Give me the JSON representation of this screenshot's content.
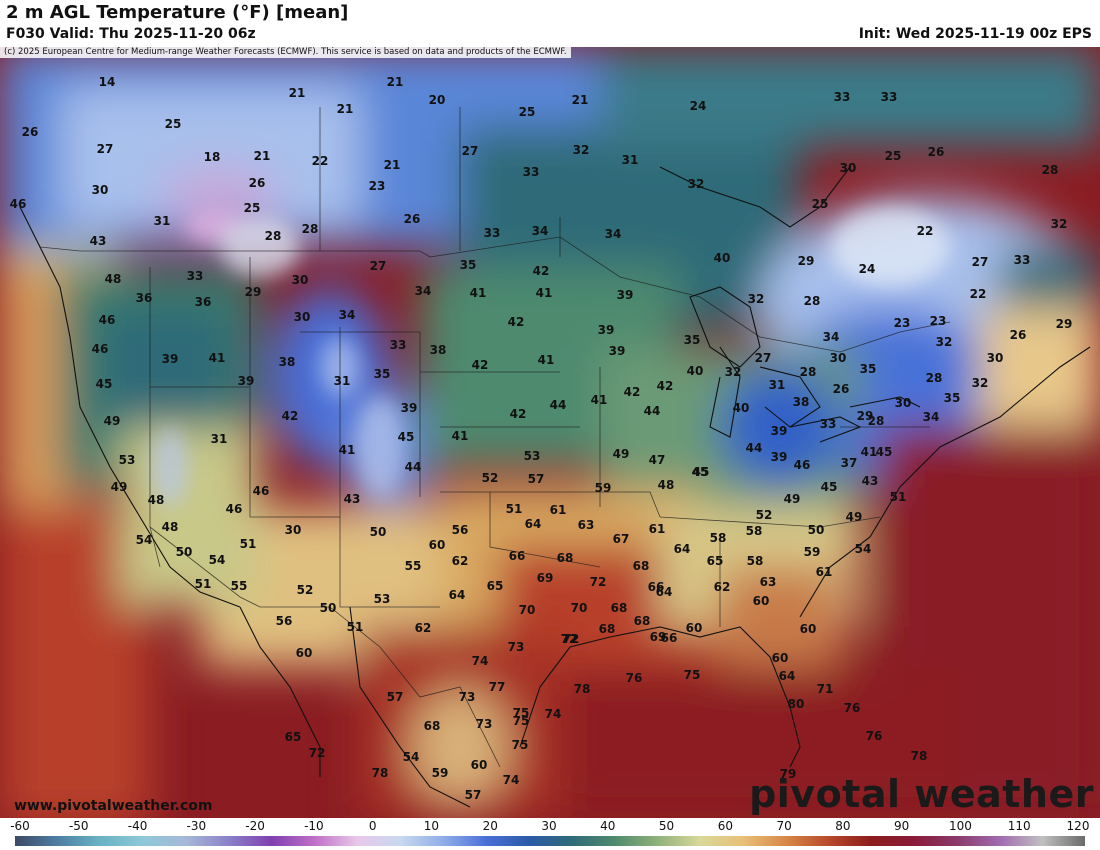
{
  "header": {
    "title": "2 m AGL Temperature (°F) [mean]",
    "valid": "F030 Valid: Thu 2025-11-20 06z",
    "init": "Init: Wed 2025-11-19 00z EPS",
    "copyright": "(c) 2025 European Centre for Medium-range Weather Forecasts (ECMWF). This service is based on data and products of the ECMWF."
  },
  "footer": {
    "website": "www.pivotalweather.com",
    "brand": "pivotal weather"
  },
  "colorbar": {
    "ticks": [
      "-60",
      "-50",
      "-40",
      "-30",
      "-20",
      "-10",
      "0",
      "10",
      "20",
      "30",
      "40",
      "50",
      "60",
      "70",
      "80",
      "90",
      "100",
      "110",
      "120"
    ],
    "colors": [
      "#3d4a66",
      "#4f7ea5",
      "#69b3c4",
      "#8ec8d8",
      "#a6b8d8",
      "#8a80c8",
      "#8040b0",
      "#c070c8",
      "#e8c8e8",
      "#c8d8f0",
      "#90aee8",
      "#4a70d8",
      "#2c5aa8",
      "#2f6b78",
      "#4e8a6e",
      "#8fb07a",
      "#d8d89a",
      "#e8c07a",
      "#d88848",
      "#b84a2c",
      "#8c1c1c",
      "#8a1a3a",
      "#8a3a6a",
      "#a06ab0",
      "#c0c0c0",
      "#6a6a6a"
    ]
  },
  "temperatures": [
    {
      "v": "14"
    },
    {
      "v": "21"
    },
    {
      "v": "20"
    },
    {
      "v": "21"
    },
    {
      "v": "21"
    },
    {
      "v": "25"
    },
    {
      "v": "21"
    },
    {
      "v": "24"
    },
    {
      "v": "33"
    },
    {
      "v": "33"
    },
    {
      "v": "26"
    },
    {
      "v": "25"
    },
    {
      "v": "27"
    },
    {
      "v": "18"
    },
    {
      "v": "21"
    },
    {
      "v": "22"
    },
    {
      "v": "21"
    },
    {
      "v": "27"
    },
    {
      "v": "32"
    },
    {
      "v": "31"
    },
    {
      "v": "30"
    },
    {
      "v": "25"
    },
    {
      "v": "26"
    },
    {
      "v": "30"
    },
    {
      "v": "26"
    },
    {
      "v": "23"
    },
    {
      "v": "33"
    },
    {
      "v": "32"
    },
    {
      "v": "28"
    },
    {
      "v": "46"
    },
    {
      "v": "31"
    },
    {
      "v": "25"
    },
    {
      "v": "28"
    },
    {
      "v": "28"
    },
    {
      "v": "26"
    },
    {
      "v": "33"
    },
    {
      "v": "34"
    },
    {
      "v": "34"
    },
    {
      "v": "25"
    },
    {
      "v": "22"
    },
    {
      "v": "32"
    },
    {
      "v": "43"
    },
    {
      "v": "27"
    },
    {
      "v": "35"
    },
    {
      "v": "42"
    },
    {
      "v": "40"
    },
    {
      "v": "29"
    },
    {
      "v": "24"
    },
    {
      "v": "27"
    },
    {
      "v": "33"
    },
    {
      "v": "48"
    },
    {
      "v": "33"
    },
    {
      "v": "30"
    },
    {
      "v": "29"
    },
    {
      "v": "34"
    },
    {
      "v": "41"
    },
    {
      "v": "41"
    },
    {
      "v": "39"
    },
    {
      "v": "32"
    },
    {
      "v": "28"
    },
    {
      "v": "22"
    },
    {
      "v": "36"
    },
    {
      "v": "36"
    },
    {
      "v": "30"
    },
    {
      "v": "34"
    },
    {
      "v": "42"
    },
    {
      "v": "23"
    },
    {
      "v": "23"
    },
    {
      "v": "26"
    },
    {
      "v": "29"
    },
    {
      "v": "46"
    },
    {
      "v": "39"
    },
    {
      "v": "33"
    },
    {
      "v": "38"
    },
    {
      "v": "39"
    },
    {
      "v": "35"
    },
    {
      "v": "34"
    },
    {
      "v": "32"
    },
    {
      "v": "30"
    },
    {
      "v": "46"
    },
    {
      "v": "39"
    },
    {
      "v": "41"
    },
    {
      "v": "38"
    },
    {
      "v": "42"
    },
    {
      "v": "41"
    },
    {
      "v": "39"
    },
    {
      "v": "30"
    },
    {
      "v": "35"
    },
    {
      "v": "45"
    },
    {
      "v": "39"
    },
    {
      "v": "31"
    },
    {
      "v": "35"
    },
    {
      "v": "42"
    },
    {
      "v": "40"
    },
    {
      "v": "32"
    },
    {
      "v": "27"
    },
    {
      "v": "28"
    },
    {
      "v": "26"
    },
    {
      "v": "28"
    },
    {
      "v": "32"
    },
    {
      "v": "49"
    },
    {
      "v": "42"
    },
    {
      "v": "39"
    },
    {
      "v": "42"
    },
    {
      "v": "41"
    },
    {
      "v": "44"
    },
    {
      "v": "42"
    },
    {
      "v": "31"
    },
    {
      "v": "38"
    },
    {
      "v": "29"
    },
    {
      "v": "30"
    },
    {
      "v": "35"
    },
    {
      "v": "31"
    },
    {
      "v": "45"
    },
    {
      "v": "41"
    },
    {
      "v": "44"
    },
    {
      "v": "40"
    },
    {
      "v": "33"
    },
    {
      "v": "28"
    },
    {
      "v": "34"
    },
    {
      "v": "53"
    },
    {
      "v": "41"
    },
    {
      "v": "52"
    },
    {
      "v": "53"
    },
    {
      "v": "49"
    },
    {
      "v": "47"
    },
    {
      "v": "45"
    },
    {
      "v": "39"
    },
    {
      "v": "44"
    },
    {
      "v": "41"
    },
    {
      "v": "49"
    },
    {
      "v": "44"
    },
    {
      "v": "57"
    },
    {
      "v": "59"
    },
    {
      "v": "48"
    },
    {
      "v": "45"
    },
    {
      "v": "46"
    },
    {
      "v": "37"
    },
    {
      "v": "46"
    },
    {
      "v": "45"
    },
    {
      "v": "48"
    },
    {
      "v": "46"
    },
    {
      "v": "43"
    },
    {
      "v": "50"
    },
    {
      "v": "61"
    },
    {
      "v": "51"
    },
    {
      "v": "52"
    },
    {
      "v": "49"
    },
    {
      "v": "43"
    },
    {
      "v": "51"
    },
    {
      "v": "48"
    },
    {
      "v": "51"
    },
    {
      "v": "56"
    },
    {
      "v": "64"
    },
    {
      "v": "63"
    },
    {
      "v": "61"
    },
    {
      "v": "58"
    },
    {
      "v": "49"
    },
    {
      "v": "45"
    },
    {
      "v": "50"
    },
    {
      "v": "54"
    },
    {
      "v": "50"
    },
    {
      "v": "60"
    },
    {
      "v": "66"
    },
    {
      "v": "68"
    },
    {
      "v": "67"
    },
    {
      "v": "64"
    },
    {
      "v": "58"
    },
    {
      "v": "59"
    },
    {
      "v": "54"
    },
    {
      "v": "51"
    },
    {
      "v": "55"
    },
    {
      "v": "54"
    },
    {
      "v": "55"
    },
    {
      "v": "69"
    },
    {
      "v": "72"
    },
    {
      "v": "68"
    },
    {
      "v": "65"
    },
    {
      "v": "58"
    },
    {
      "v": "61"
    },
    {
      "v": "30"
    },
    {
      "v": "52"
    },
    {
      "v": "64"
    },
    {
      "v": "65"
    },
    {
      "v": "70"
    },
    {
      "v": "70"
    },
    {
      "v": "68"
    },
    {
      "v": "66"
    },
    {
      "v": "62"
    },
    {
      "v": "63"
    },
    {
      "v": "56"
    },
    {
      "v": "50"
    },
    {
      "v": "53"
    },
    {
      "v": "62"
    },
    {
      "v": "72"
    },
    {
      "v": "68"
    },
    {
      "v": "69"
    },
    {
      "v": "64"
    },
    {
      "v": "60"
    },
    {
      "v": "60"
    },
    {
      "v": "51"
    },
    {
      "v": "60"
    },
    {
      "v": "62"
    },
    {
      "v": "73"
    },
    {
      "v": "68"
    },
    {
      "v": "60"
    },
    {
      "v": "66"
    },
    {
      "v": "74"
    },
    {
      "v": "77"
    },
    {
      "v": "75"
    },
    {
      "v": "78"
    },
    {
      "v": "76"
    },
    {
      "v": "75"
    },
    {
      "v": "60"
    },
    {
      "v": "64"
    },
    {
      "v": "71"
    },
    {
      "v": "57"
    },
    {
      "v": "73"
    },
    {
      "v": "75"
    },
    {
      "v": "72"
    },
    {
      "v": "74"
    },
    {
      "v": "65"
    },
    {
      "v": "68"
    },
    {
      "v": "73"
    },
    {
      "v": "75"
    },
    {
      "v": "76"
    },
    {
      "v": "72"
    },
    {
      "v": "54"
    },
    {
      "v": "60"
    },
    {
      "v": "74"
    },
    {
      "v": "78"
    },
    {
      "v": "78"
    },
    {
      "v": "59"
    },
    {
      "v": "57"
    },
    {
      "v": "79"
    },
    {
      "v": "80"
    },
    {
      "v": "76"
    }
  ]
}
